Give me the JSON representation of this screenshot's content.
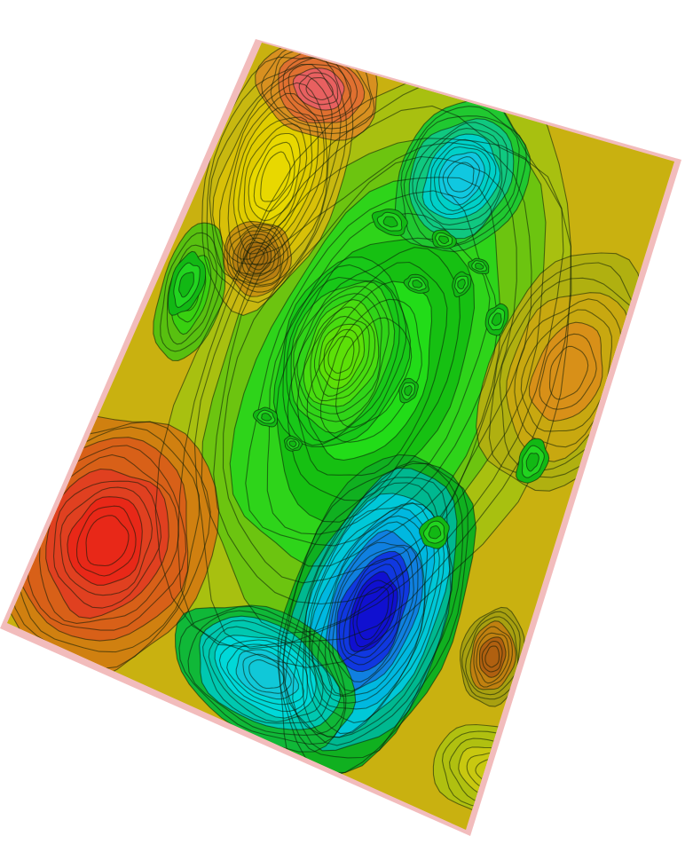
{
  "scene": {
    "background": "#ffffff",
    "surface_shadow": "#e06464",
    "contour_line_color": "#0a1a08",
    "palette": [
      "#1010d8",
      "#00e8e8",
      "#10c010",
      "#20e020",
      "#b8d010",
      "#e8d000",
      "#d88010",
      "#e83010"
    ],
    "levels": 28
  }
}
